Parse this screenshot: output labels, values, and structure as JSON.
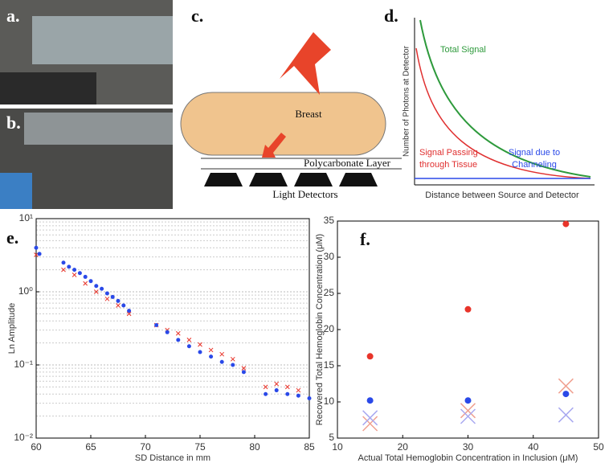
{
  "panel_labels": [
    "a.",
    "b.",
    "c.",
    "d.",
    "e.",
    "f."
  ],
  "diagram": {
    "breast": "Breast",
    "layer": "Polycarbonate Layer",
    "detectors": "Light Detectors"
  },
  "schematic": {
    "y_label": "Number of Photons at Detector",
    "x_label": "Distance between Source and Detector",
    "total": "Total Signal",
    "tissue": [
      "Signal Passing",
      "through Tissue"
    ],
    "channel": [
      "Signal due to",
      "Channeling"
    ]
  },
  "chart_data": [
    {
      "type": "scatter",
      "x_label": "SD Distance in mm",
      "y_label": "Ln Amplitude",
      "log_y": true,
      "grid": true,
      "xlim": [
        60,
        85
      ],
      "xticks": [
        60,
        65,
        70,
        75,
        80,
        85
      ],
      "ylim": [
        0.01,
        10
      ],
      "yticks": [
        {
          "value": 0.01,
          "label": "10⁻²"
        },
        {
          "value": 0.1,
          "label": "10⁻¹"
        },
        {
          "value": 1,
          "label": "10⁰"
        },
        {
          "value": 10,
          "label": "10¹"
        }
      ],
      "series": [
        {
          "color": "#e8342a",
          "marker": "x",
          "x": [
            60,
            62.5,
            63.5,
            64.5,
            65.5,
            66.5,
            67.5,
            68.5,
            71,
            72,
            73,
            74,
            75,
            76,
            77,
            78,
            79,
            81,
            82,
            83,
            84
          ],
          "values": [
            3.2,
            2.0,
            1.7,
            1.3,
            1.0,
            0.8,
            0.65,
            0.5,
            0.35,
            0.3,
            0.27,
            0.22,
            0.19,
            0.16,
            0.14,
            0.12,
            0.09,
            0.05,
            0.055,
            0.05,
            0.045
          ]
        },
        {
          "color": "#2a49e8",
          "marker": "o",
          "x": [
            60,
            60.3,
            62.5,
            63,
            63.5,
            64,
            64.5,
            65,
            65.5,
            66,
            66.5,
            67,
            67.5,
            68,
            68.5,
            71,
            72,
            73,
            74,
            75,
            76,
            77,
            78,
            79,
            81,
            82,
            83,
            84,
            85
          ],
          "values": [
            4,
            3.3,
            2.5,
            2.2,
            2.0,
            1.8,
            1.6,
            1.4,
            1.2,
            1.1,
            0.95,
            0.85,
            0.75,
            0.65,
            0.55,
            0.35,
            0.28,
            0.22,
            0.18,
            0.15,
            0.13,
            0.11,
            0.1,
            0.08,
            0.04,
            0.045,
            0.04,
            0.038,
            0.035
          ]
        }
      ]
    },
    {
      "type": "scatter",
      "x_label": "Actual Total Hemoglobin Concentration in Inclusion (μM)",
      "y_label": "Recovered Total Hemoglobin Concentration (μM)",
      "log_y": false,
      "grid": false,
      "xlim": [
        10,
        50
      ],
      "xticks": [
        10,
        20,
        30,
        40,
        50
      ],
      "ylim": [
        5,
        35
      ],
      "yticks": [
        5,
        10,
        15,
        20,
        25,
        30,
        35
      ],
      "series": [
        {
          "color": "#e8342a",
          "marker": "o",
          "x": [
            15,
            30,
            45
          ],
          "values": [
            16.3,
            22.8,
            34.6
          ]
        },
        {
          "color": "#2a49e8",
          "marker": "o",
          "x": [
            15,
            30,
            45
          ],
          "values": [
            10.2,
            10.2,
            11.1
          ]
        },
        {
          "color": "#f0a090",
          "marker": "X",
          "x": [
            15,
            30,
            45
          ],
          "values": [
            7,
            8.8,
            12.2
          ]
        },
        {
          "color": "#a8a8f0",
          "marker": "X",
          "x": [
            15,
            30,
            45
          ],
          "values": [
            7.8,
            8,
            8.2
          ]
        }
      ]
    }
  ]
}
